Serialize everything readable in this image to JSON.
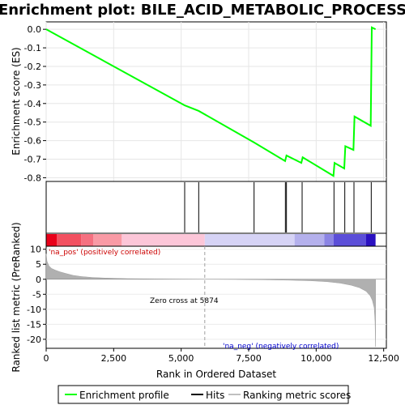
{
  "chart_data": {
    "type": "line",
    "title": "Enrichment plot: BILE_ACID_METABOLIC_PROCESS",
    "top_panel": {
      "ylabel": "Enrichment score (ES)",
      "ylim": [
        -0.82,
        0.04
      ],
      "yticks": [
        "0.0",
        "-0.1",
        "-0.2",
        "-0.3",
        "-0.4",
        "-0.5",
        "-0.6",
        "-0.7",
        "-0.8"
      ],
      "ytick_values": [
        0.0,
        -0.1,
        -0.2,
        -0.3,
        -0.4,
        -0.5,
        -0.6,
        -0.7,
        -0.8
      ],
      "series": [
        {
          "name": "Enrichment profile",
          "color": "#00ff00",
          "x": [
            0,
            5130,
            5650,
            7700,
            8850,
            8900,
            9450,
            9500,
            10640,
            10680,
            11040,
            11080,
            11380,
            11420,
            12020,
            12060,
            12200
          ],
          "y": [
            0.0,
            -0.41,
            -0.44,
            -0.61,
            -0.71,
            -0.68,
            -0.72,
            -0.69,
            -0.79,
            -0.72,
            -0.75,
            -0.63,
            -0.65,
            -0.47,
            -0.52,
            0.01,
            0.0
          ]
        }
      ],
      "grid": true
    },
    "hits": {
      "name": "Hits",
      "x": [
        5130,
        5650,
        7700,
        8860,
        8900,
        9480,
        10660,
        11060,
        11400,
        12040
      ]
    },
    "ranked_metric": {
      "name": "Ranking metric scores",
      "ylabel": "Ranked list metric (PreRanked)",
      "ylim": [
        -23,
        11
      ],
      "yticks": [
        "10",
        "5",
        "0",
        "-5",
        "-10",
        "-15",
        "-20"
      ],
      "ytick_values": [
        10,
        5,
        0,
        -5,
        -10,
        -15,
        -20
      ],
      "color": "#b0b0b0",
      "x": [
        0,
        30,
        100,
        200,
        350,
        500,
        700,
        1000,
        1300,
        1700,
        2200,
        3000,
        4000,
        5000,
        5874,
        7000,
        8000,
        9000,
        9800,
        10400,
        10900,
        11300,
        11600,
        11850,
        12000,
        12080,
        12150,
        12180,
        12200
      ],
      "y": [
        8.5,
        6.0,
        4.5,
        3.6,
        3.0,
        2.5,
        2.0,
        1.3,
        0.9,
        0.6,
        0.4,
        0.2,
        0.1,
        0.04,
        0.0,
        -0.05,
        -0.15,
        -0.3,
        -0.5,
        -0.8,
        -1.3,
        -2.0,
        -2.8,
        -4.0,
        -5.5,
        -7.0,
        -9.5,
        -14.0,
        -22.5
      ],
      "zero_cross_label": "Zero cross at 5874",
      "zero_cross": 5874,
      "pos_label": "'na_pos' (positively correlated)",
      "neg_label": "'na_neg' (negatively correlated)"
    },
    "heatbar": {
      "segments": [
        {
          "start": 0,
          "end": 400,
          "color": "#e8001a"
        },
        {
          "start": 400,
          "end": 1300,
          "color": "#f25060"
        },
        {
          "start": 1300,
          "end": 1750,
          "color": "#f57080"
        },
        {
          "start": 1750,
          "end": 2800,
          "color": "#f99aa5"
        },
        {
          "start": 2800,
          "end": 5874,
          "color": "#fcc6d8"
        },
        {
          "start": 5874,
          "end": 9200,
          "color": "#d6d3f5"
        },
        {
          "start": 9200,
          "end": 10300,
          "color": "#b4b0ec"
        },
        {
          "start": 10300,
          "end": 10650,
          "color": "#8b84e4"
        },
        {
          "start": 10650,
          "end": 11850,
          "color": "#5b4ed8"
        },
        {
          "start": 11850,
          "end": 12200,
          "color": "#2a10c0"
        }
      ]
    },
    "xlabel": "Rank in Ordered Dataset",
    "xlim": [
      0,
      12600
    ],
    "xticks": [
      "0",
      "2,500",
      "5,000",
      "7,500",
      "10,000",
      "12,500"
    ],
    "xtick_values": [
      0,
      2500,
      5000,
      7500,
      10000,
      12500
    ]
  },
  "legend": {
    "items": [
      {
        "label": "Enrichment profile",
        "color": "#00ff00"
      },
      {
        "label": "Hits",
        "color": "#000000"
      },
      {
        "label": "Ranking metric scores",
        "color": "#c0c0c0"
      }
    ]
  }
}
